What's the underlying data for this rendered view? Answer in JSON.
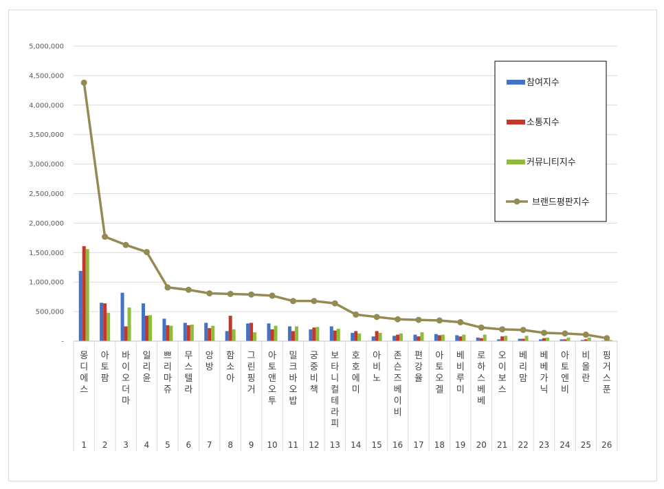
{
  "chart_data": {
    "type": "bar",
    "title": "",
    "xlabel": "",
    "ylabel": "",
    "ylim": [
      0,
      5000000
    ],
    "yticks": [
      0,
      500000,
      1000000,
      1500000,
      2000000,
      2500000,
      3000000,
      3500000,
      4000000,
      4500000,
      5000000
    ],
    "ytick_labels": [
      "-",
      "500,000",
      "1,000,000",
      "1,500,000",
      "2,000,000",
      "2,500,000",
      "3,000,000",
      "3,500,000",
      "4,000,000",
      "4,500,000",
      "5,000,000"
    ],
    "grid": true,
    "legend_position": "top-right",
    "categories": [
      "몽디에스",
      "아토팜",
      "바이오더마",
      "일리윤",
      "쁘리마쥬",
      "무스텔라",
      "앙방",
      "함소아",
      "그린핑거",
      "아토앤오투",
      "밀크바오밥",
      "궁중비책",
      "보타니컬테라피",
      "호호에미",
      "아비노",
      "존슨즈베이비",
      "편강율",
      "아토오겔",
      "베비루미",
      "로하스베베",
      "오이보스",
      "베리맘",
      "베베가닉",
      "아토엔비",
      "비올란",
      "핑거스푼"
    ],
    "ranks": [
      "1",
      "2",
      "3",
      "4",
      "5",
      "6",
      "7",
      "8",
      "9",
      "10",
      "11",
      "12",
      "13",
      "14",
      "15",
      "16",
      "17",
      "18",
      "19",
      "20",
      "21",
      "22",
      "23",
      "24",
      "25",
      "26"
    ],
    "series": [
      {
        "name": "참여지수",
        "kind": "bar",
        "color": "#4472c4",
        "values": [
          1190000,
          650000,
          820000,
          640000,
          380000,
          310000,
          310000,
          170000,
          300000,
          300000,
          250000,
          200000,
          250000,
          140000,
          80000,
          90000,
          110000,
          120000,
          100000,
          60000,
          30000,
          40000,
          30000,
          30000,
          20000,
          10000
        ]
      },
      {
        "name": "소통지수",
        "kind": "bar",
        "color": "#c0392b",
        "values": [
          1610000,
          640000,
          250000,
          430000,
          270000,
          270000,
          220000,
          430000,
          310000,
          200000,
          170000,
          230000,
          180000,
          170000,
          170000,
          110000,
          80000,
          100000,
          80000,
          50000,
          80000,
          40000,
          50000,
          30000,
          30000,
          10000
        ]
      },
      {
        "name": "커뮤니티지수",
        "kind": "bar",
        "color": "#8fbc3a",
        "values": [
          1560000,
          480000,
          570000,
          440000,
          260000,
          280000,
          260000,
          200000,
          150000,
          260000,
          250000,
          240000,
          210000,
          130000,
          140000,
          130000,
          150000,
          110000,
          110000,
          110000,
          90000,
          90000,
          60000,
          60000,
          60000,
          20000
        ]
      },
      {
        "name": "브랜드평판지수",
        "kind": "line",
        "color": "#948a54",
        "values": [
          4380000,
          1770000,
          1630000,
          1510000,
          910000,
          870000,
          810000,
          800000,
          790000,
          770000,
          680000,
          680000,
          640000,
          450000,
          410000,
          370000,
          360000,
          350000,
          320000,
          230000,
          200000,
          190000,
          140000,
          130000,
          110000,
          50000
        ]
      }
    ]
  }
}
